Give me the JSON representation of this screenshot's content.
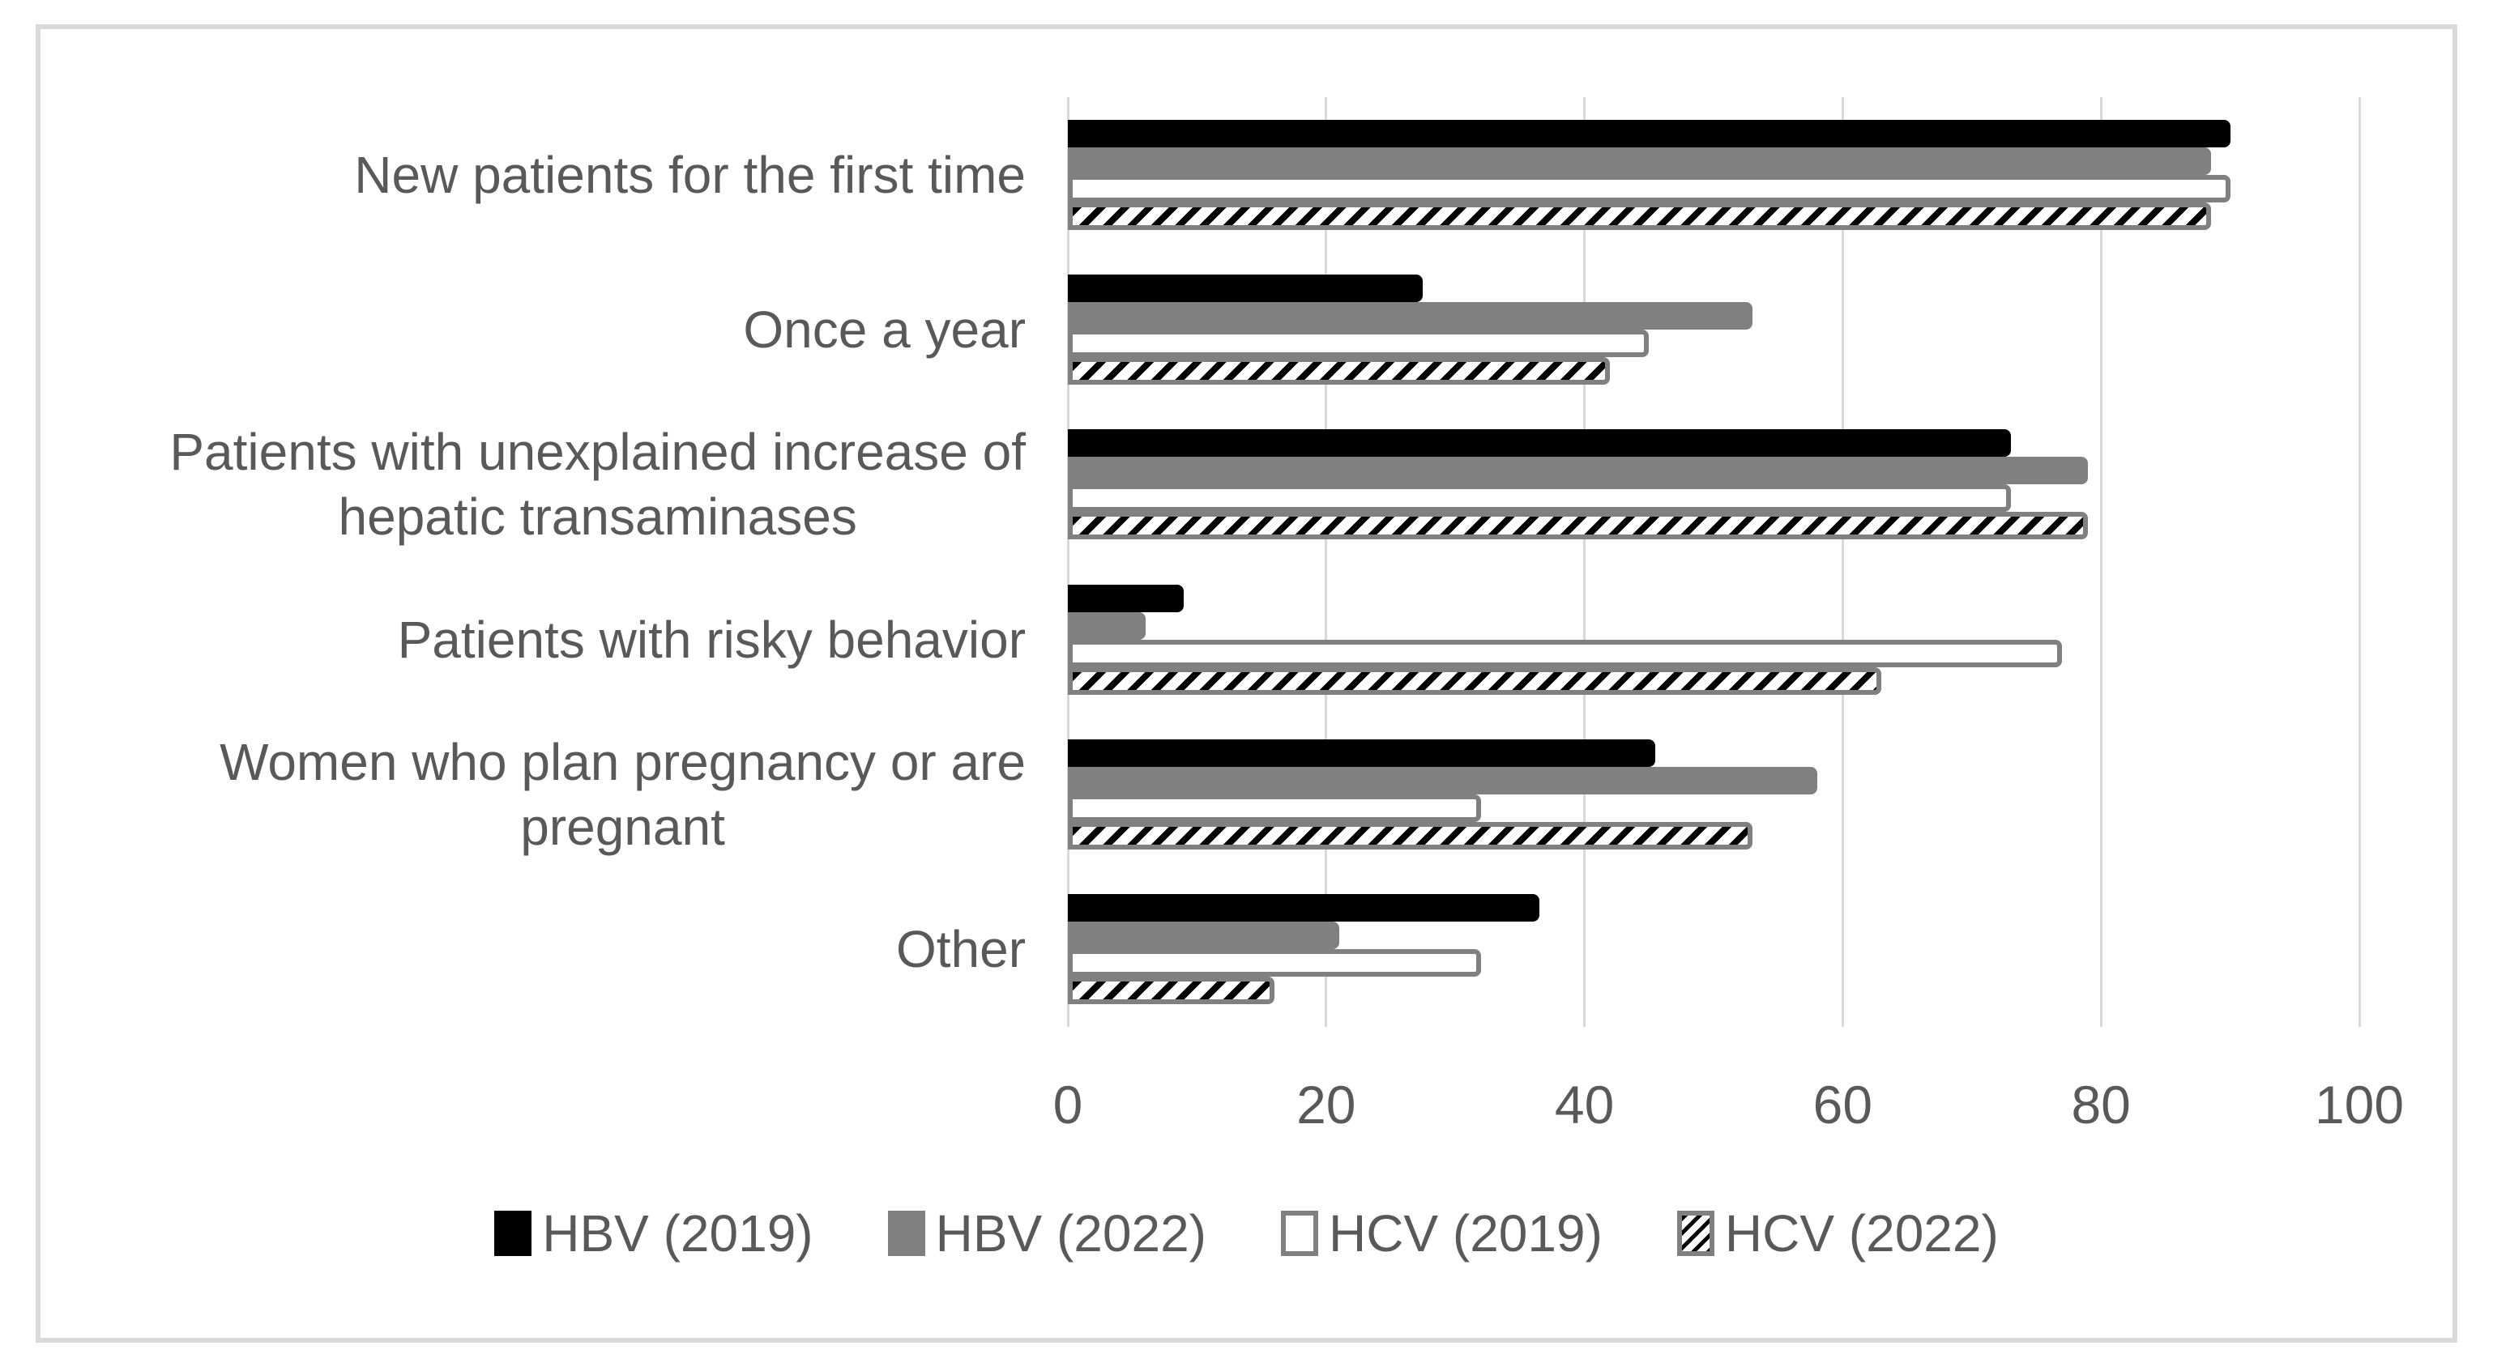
{
  "chart_data": {
    "type": "bar",
    "orientation": "horizontal",
    "title": "",
    "xlabel": "",
    "ylabel": "",
    "categories": [
      {
        "label": "New patients for the first time",
        "lines": [
          "New patients for the first time"
        ]
      },
      {
        "label": "Once a year",
        "lines": [
          "Once a year"
        ]
      },
      {
        "label": "Patients with unexplained increase of hepatic transaminases",
        "lines": [
          "Patients with unexplained increase of",
          "hepatic transaminases"
        ]
      },
      {
        "label": "Patients with risky behavior",
        "lines": [
          "Patients with risky behavior"
        ]
      },
      {
        "label": "Women who plan pregnancy or are pregnant",
        "lines": [
          "Women who plan pregnancy or are",
          "pregnant"
        ]
      },
      {
        "label": "Other",
        "lines": [
          "Other"
        ]
      }
    ],
    "series": [
      {
        "name": "HBV (2019)",
        "style": "solid-black",
        "values": [
          90,
          27.5,
          73,
          9,
          45.5,
          36.5
        ]
      },
      {
        "name": "HBV (2022)",
        "style": "solid-gray",
        "values": [
          88.5,
          53,
          79,
          6,
          58,
          21
        ]
      },
      {
        "name": "HCV (2019)",
        "style": "white-outlined",
        "values": [
          90,
          45,
          73,
          77,
          32,
          32
        ]
      },
      {
        "name": "HCV (2022)",
        "style": "diagonal-hatch",
        "values": [
          88.5,
          42,
          79,
          63,
          53,
          16
        ]
      }
    ],
    "x_axis": {
      "range": [
        0,
        100
      ],
      "ticks": [
        0,
        20,
        40,
        60,
        80,
        100
      ]
    },
    "legend": {
      "position": "bottom",
      "entries": [
        "HBV (2019)",
        "HBV (2022)",
        "HCV (2019)",
        "HCV (2022)"
      ]
    },
    "grid": "vertical-only",
    "colors": {
      "bar_black": "#000000",
      "bar_gray": "#808080",
      "bar_outline": "#808080",
      "gridline": "#D9D9D9",
      "text": "#595959",
      "frame_border": "#D9D9D9",
      "background": "#FFFFFF"
    }
  }
}
